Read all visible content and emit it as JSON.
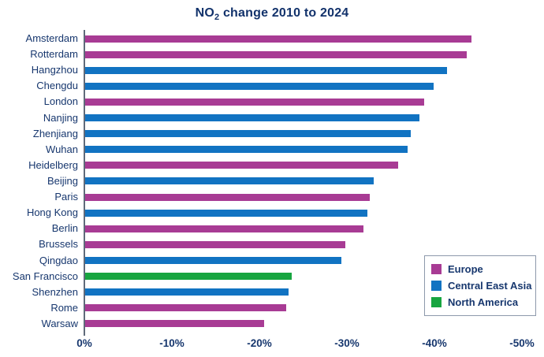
{
  "chart_data": {
    "type": "bar",
    "orientation": "horizontal",
    "title": "NO2 change 2010 to 2024",
    "title_parts": {
      "prefix": "NO",
      "sub": "2",
      "rest": " change 2010 to 2024"
    },
    "unit": "%",
    "xlim": [
      0,
      -50
    ],
    "grid": false,
    "x_tick_labels": [
      "0%",
      "-10%",
      "-20%",
      "-30%",
      "-40%",
      "-50%"
    ],
    "x_tick_values": [
      0,
      -10,
      -20,
      -30,
      -40,
      -50
    ],
    "legend_position": "right-bottom",
    "legend": [
      {
        "label": "Europe",
        "color": "#a83b94"
      },
      {
        "label": "Central East Asia",
        "color": "#1173c2"
      },
      {
        "label": "North America",
        "color": "#17a540"
      }
    ],
    "bars": [
      {
        "city": "Amsterdam",
        "region": "Europe",
        "value": -44.2
      },
      {
        "city": "Rotterdam",
        "region": "Europe",
        "value": -43.7
      },
      {
        "city": "Hangzhou",
        "region": "Central East Asia",
        "value": -41.4
      },
      {
        "city": "Chengdu",
        "region": "Central East Asia",
        "value": -39.9
      },
      {
        "city": "London",
        "region": "Europe",
        "value": -38.8
      },
      {
        "city": "Nanjing",
        "region": "Central East Asia",
        "value": -38.3
      },
      {
        "city": "Zhenjiang",
        "region": "Central East Asia",
        "value": -37.3
      },
      {
        "city": "Wuhan",
        "region": "Central East Asia",
        "value": -36.9
      },
      {
        "city": "Heidelberg",
        "region": "Europe",
        "value": -35.9
      },
      {
        "city": "Beijing",
        "region": "Central East Asia",
        "value": -33.1
      },
      {
        "city": "Paris",
        "region": "Europe",
        "value": -32.6
      },
      {
        "city": "Hong Kong",
        "region": "Central East Asia",
        "value": -32.3
      },
      {
        "city": "Berlin",
        "region": "Europe",
        "value": -31.9
      },
      {
        "city": "Brussels",
        "region": "Europe",
        "value": -29.8
      },
      {
        "city": "Qingdao",
        "region": "Central East Asia",
        "value": -29.4
      },
      {
        "city": "San Francisco",
        "region": "North America",
        "value": -23.7
      },
      {
        "city": "Shenzhen",
        "region": "Central East Asia",
        "value": -23.3
      },
      {
        "city": "Rome",
        "region": "Europe",
        "value": -23.1
      },
      {
        "city": "Warsaw",
        "region": "Europe",
        "value": -20.5
      }
    ],
    "colors": {
      "title_text": "#12326b",
      "label_text": "#17376e",
      "axis_line": "#5f6a7a",
      "europe": "#a83b94",
      "central_east_asia": "#1173c2",
      "north_america": "#17a540",
      "background": "#ffffff"
    }
  }
}
